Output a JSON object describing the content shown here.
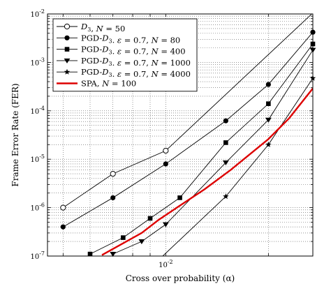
{
  "chart_data": {
    "type": "line",
    "title": "",
    "xlabel": "Cross over probability (α)",
    "ylabel": "Frame Error Rate (FER)",
    "xscale": "log",
    "yscale": "log",
    "xlim": [
      0.0045,
      0.027
    ],
    "ylim": [
      1e-07,
      0.01
    ],
    "grid": true,
    "legend_position": "top-left",
    "x_tick_labels": [
      {
        "base": "10",
        "exp": "-2"
      }
    ],
    "y_tick_labels": [
      {
        "base": "10",
        "exp": "-2"
      },
      {
        "base": "10",
        "exp": "-3"
      },
      {
        "base": "10",
        "exp": "-4"
      },
      {
        "base": "10",
        "exp": "-5"
      },
      {
        "base": "10",
        "exp": "-6"
      },
      {
        "base": "10",
        "exp": "-7"
      }
    ],
    "series": [
      {
        "name": "D3, N = 50",
        "legend_parts": [
          {
            "t": "D",
            "it": true
          },
          {
            "t": "3",
            "sub": true
          },
          {
            "t": ", "
          },
          {
            "t": "N",
            "it": true
          },
          {
            "t": " = 50"
          }
        ],
        "marker": "open-circle",
        "color": "#000000",
        "markers_x": [
          0.005,
          0.007,
          0.01
        ],
        "markers_y": [
          1e-06,
          5e-06,
          1.5e-05
        ],
        "line_end": [
          0.027,
          0.0105
        ]
      },
      {
        "name": "PGD-D3. ε = 0.7, N = 80",
        "legend_parts": [
          {
            "t": "PGD-"
          },
          {
            "t": "D",
            "it": true
          },
          {
            "t": "3",
            "sub": true
          },
          {
            "t": ". "
          },
          {
            "t": "ε",
            "it": true
          },
          {
            "t": " = 0.7, "
          },
          {
            "t": "N",
            "it": true
          },
          {
            "t": " = 80"
          }
        ],
        "marker": "filled-circle",
        "color": "#000000",
        "markers_x": [
          0.005,
          0.007,
          0.01,
          0.015,
          0.02,
          0.027
        ],
        "markers_y": [
          4e-07,
          1.6e-06,
          8e-06,
          6.2e-05,
          0.00035,
          0.0042
        ]
      },
      {
        "name": "PGD-D3. ε = 0.7, N = 400",
        "legend_parts": [
          {
            "t": "PGD-"
          },
          {
            "t": "D",
            "it": true
          },
          {
            "t": "3",
            "sub": true
          },
          {
            "t": ". "
          },
          {
            "t": "ε",
            "it": true
          },
          {
            "t": " = 0.7, "
          },
          {
            "t": "N",
            "it": true
          },
          {
            "t": " = 400"
          }
        ],
        "marker": "filled-square",
        "color": "#000000",
        "markers_x": [
          0.006,
          0.0075,
          0.009,
          0.011,
          0.015,
          0.02,
          0.027
        ],
        "markers_y": [
          1.1e-07,
          2.4e-07,
          6e-07,
          1.6e-06,
          2.2e-05,
          0.00014,
          0.0024
        ]
      },
      {
        "name": "PGD-D3. ε = 0.7, N = 1000",
        "legend_parts": [
          {
            "t": "PGD-"
          },
          {
            "t": "D",
            "it": true
          },
          {
            "t": "3",
            "sub": true
          },
          {
            "t": ". "
          },
          {
            "t": "ε",
            "it": true
          },
          {
            "t": " = 0.7, "
          },
          {
            "t": "N",
            "it": true
          },
          {
            "t": " = 1000"
          }
        ],
        "marker": "filled-triangle-down",
        "color": "#000000",
        "markers_x": [
          0.007,
          0.0085,
          0.01,
          0.015,
          0.02,
          0.027
        ],
        "markers_y": [
          1.1e-07,
          2e-07,
          4.5e-07,
          8.5e-06,
          6.5e-05,
          0.0018
        ]
      },
      {
        "name": "PGD-D3. ε = 0.7, N = 4000",
        "legend_parts": [
          {
            "t": "PGD-"
          },
          {
            "t": "D",
            "it": true
          },
          {
            "t": "3",
            "sub": true
          },
          {
            "t": ". "
          },
          {
            "t": "ε",
            "it": true
          },
          {
            "t": " = 0.7, "
          },
          {
            "t": "N",
            "it": true
          },
          {
            "t": " = 4000"
          }
        ],
        "marker": "filled-star",
        "color": "#000000",
        "markers_x": [
          0.015,
          0.02,
          0.027
        ],
        "markers_y": [
          1.7e-06,
          2e-05,
          0.00047
        ],
        "line_start": [
          0.0098,
          1e-07
        ]
      },
      {
        "name": "SPA, N = 100",
        "legend_parts": [
          {
            "t": "SPA, "
          },
          {
            "t": "N",
            "it": true
          },
          {
            "t": " = 100"
          }
        ],
        "marker": "none",
        "color": "#dd0000",
        "x": [
          0.0065,
          0.0085,
          0.0095,
          0.011,
          0.013,
          0.0155,
          0.02,
          0.023,
          0.027
        ],
        "y": [
          1.05e-07,
          3e-07,
          5.5e-07,
          1.1e-06,
          2.4e-06,
          6e-06,
          2.6e-05,
          7e-05,
          0.00029
        ]
      }
    ]
  }
}
